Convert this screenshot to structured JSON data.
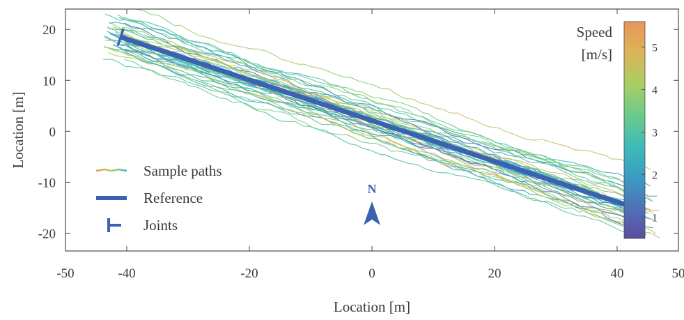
{
  "chart_data": {
    "type": "line",
    "title": "",
    "xlabel": "Location [m]",
    "ylabel": "Location [m]",
    "xlim": [
      -50,
      50
    ],
    "ylim": [
      -23.5,
      24
    ],
    "x_ticks": [
      -50,
      -40,
      -20,
      0,
      20,
      40,
      50
    ],
    "x_tick_labels": [
      "-50",
      "-40",
      "-20",
      "0",
      "20",
      "40",
      "50"
    ],
    "y_ticks": [
      -20,
      -10,
      0,
      10,
      20
    ],
    "y_tick_labels": [
      "-20",
      "-10",
      "0",
      "10",
      "20"
    ],
    "grid": false,
    "legend": {
      "placement": "lower-left",
      "entries": [
        {
          "name": "Sample paths",
          "style": "gradient-line"
        },
        {
          "name": "Reference",
          "style": "thick-line",
          "color": "#3a62b0"
        },
        {
          "name": "Joints",
          "style": "joint-marker",
          "color": "#3a62b0"
        }
      ]
    },
    "colorbar": {
      "title_line1": "Speed",
      "title_line2": "[m/s]",
      "range": [
        0.5,
        5.6
      ],
      "ticks": [
        1,
        2,
        3,
        4,
        5
      ],
      "tick_labels": [
        "1",
        "2",
        "3",
        "4",
        "5"
      ],
      "colors": [
        "#5a4d9e",
        "#4f72b8",
        "#3b9cc4",
        "#3fbcb6",
        "#6ccb8a",
        "#a9cf63",
        "#dcb45a",
        "#e8955a"
      ]
    },
    "reference": {
      "name": "Reference",
      "color": "#3a62b0",
      "x": [
        -41,
        44
      ],
      "y": [
        18.5,
        -15.5
      ]
    },
    "joints": [
      {
        "x": -41,
        "y": 18.5
      },
      {
        "x": 44,
        "y": -15.5
      }
    ],
    "north_arrow": {
      "label": "N",
      "x": 0,
      "y": -16.5,
      "color": "#3a62b0"
    },
    "sample_paths": {
      "count": 40,
      "x_start": -44,
      "x_end": 47,
      "speed_range": [
        0.8,
        5.4
      ]
    }
  }
}
